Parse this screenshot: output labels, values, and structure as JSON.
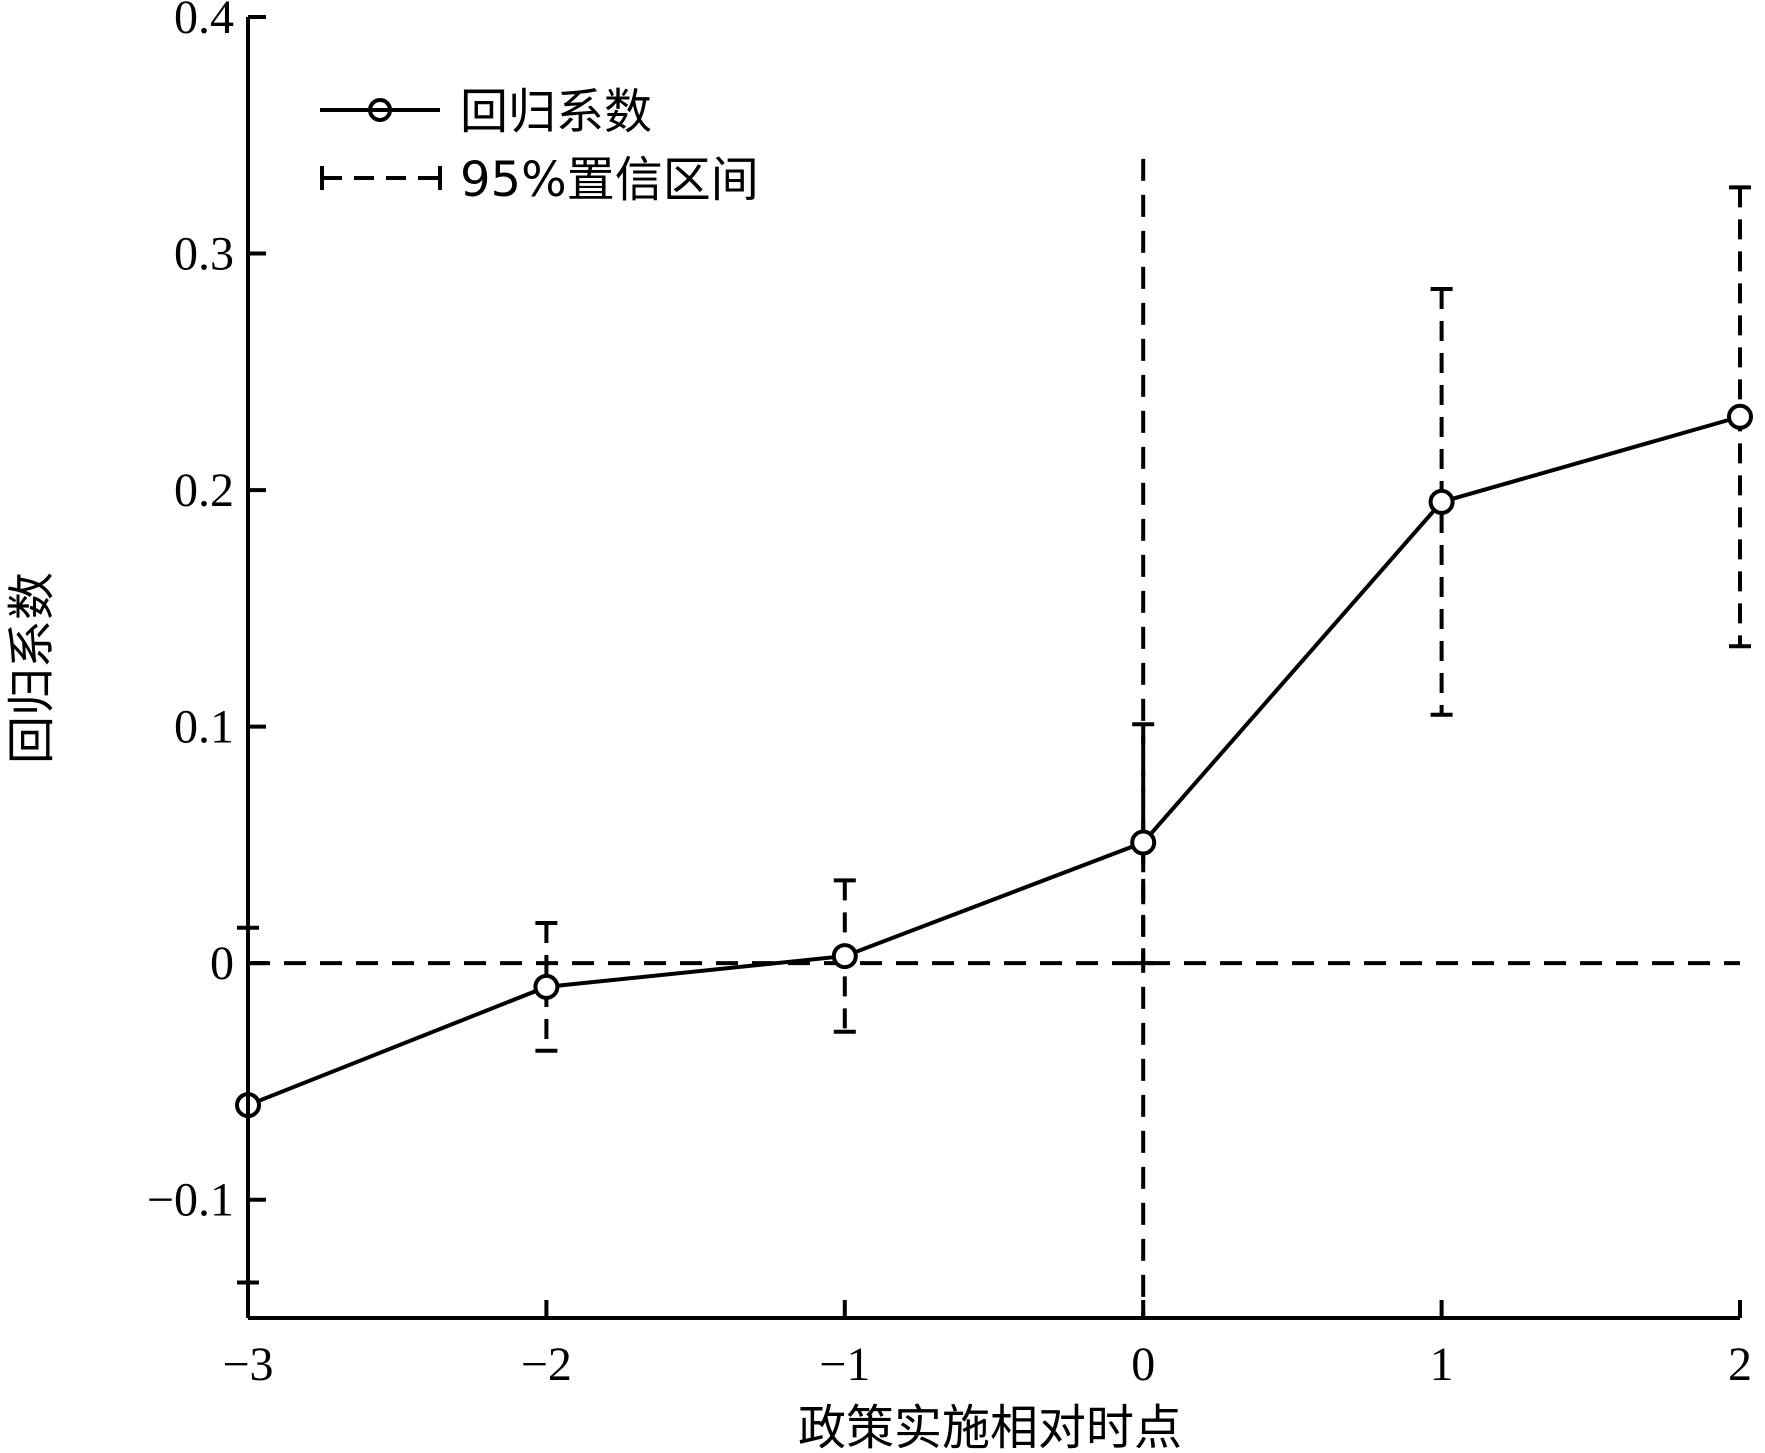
{
  "chart_data": {
    "type": "line",
    "title": "",
    "xlabel": "政策实施相对时点",
    "ylabel": "回归系数",
    "xlim": [
      -3,
      2
    ],
    "ylim": [
      -0.15,
      0.4
    ],
    "x_ticks": [
      -3,
      -2,
      -1,
      0,
      1,
      2
    ],
    "x_tick_labels": [
      "−3",
      "−2",
      "−1",
      "0",
      "1",
      "2"
    ],
    "y_ticks": [
      -0.1,
      0,
      0.1,
      0.2,
      0.3,
      0.4
    ],
    "y_tick_labels": [
      "−0.1",
      "0",
      "0.1",
      "0.2",
      "0.3",
      "0.4"
    ],
    "grid": false,
    "legend": {
      "position": "top-left",
      "entries": [
        {
          "label": "回归系数",
          "style": "solid-line-circle-marker"
        },
        {
          "label": "95%置信区间",
          "style": "dashed-errorbar"
        }
      ]
    },
    "series": [
      {
        "name": "回归系数",
        "x": [
          -3,
          -2,
          -1,
          0,
          1,
          2
        ],
        "y": [
          -0.06,
          -0.01,
          0.003,
          0.051,
          0.195,
          0.231
        ],
        "ci_lower": [
          -0.135,
          -0.037,
          -0.029,
          0.0,
          0.105,
          0.134
        ],
        "ci_upper": [
          0.015,
          0.017,
          0.035,
          0.101,
          0.285,
          0.328
        ]
      }
    ],
    "reference_lines": [
      {
        "orientation": "horizontal",
        "value": 0,
        "style": "dashed"
      },
      {
        "orientation": "vertical",
        "value": 0,
        "style": "dashed",
        "range": [
          -0.15,
          0.34
        ]
      }
    ],
    "colors": {
      "line": "#000000",
      "background": "#ffffff"
    }
  }
}
